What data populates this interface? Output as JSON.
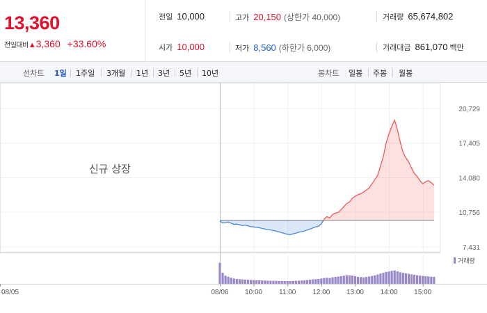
{
  "quote": {
    "price": "13,360",
    "change_label": "전일대비",
    "change_arrow": "▲",
    "change_value": "3,360",
    "change_pct": "+33.60%",
    "prev_close_label": "전일",
    "prev_close": "10,000",
    "open_label": "시가",
    "open": "10,000",
    "high_label": "고가",
    "high": "20,150",
    "upper_limit": "(상한가 40,000)",
    "low_label": "저가",
    "low": "8,560",
    "lower_limit": "(하한가 6,000)",
    "volume_label": "거래량",
    "volume": "65,674,802",
    "amount_label": "거래대금",
    "amount": "861,070",
    "amount_unit": "백만"
  },
  "periods": {
    "line_label": "선차트",
    "line_items": [
      "1일",
      "1주일",
      "3개월",
      "1년",
      "3년",
      "5년",
      "10년"
    ],
    "active": "1일",
    "candle_label": "봉차트",
    "candle_items": [
      "일봉",
      "주봉",
      "월봉"
    ]
  },
  "notice": "신규 상장",
  "colors": {
    "up": "#e0102a",
    "down": "#1e5bd6",
    "up_line": "#f05858",
    "down_line": "#4a86d0",
    "volume": "#9b88c9"
  },
  "chart_data": {
    "type": "line",
    "base_price": 10000,
    "ylim": [
      7431,
      20729
    ],
    "yticks": [
      "20,729",
      "17,405",
      "14,080",
      "10,756",
      "7,431"
    ],
    "ytick_values": [
      20729,
      17405,
      14080,
      10756,
      7431
    ],
    "xticks": [
      "08/05",
      "08/06",
      "10:00",
      "11:00",
      "12:00",
      "13:00",
      "14:00",
      "15:00"
    ],
    "volume_legend": "거래량",
    "series": [
      {
        "x": [
          "09:00",
          "09:05",
          "09:10",
          "09:15",
          "09:20",
          "09:25",
          "09:30",
          "09:35",
          "09:40",
          "09:45",
          "09:50",
          "09:55",
          "10:00",
          "10:05",
          "10:10",
          "10:15",
          "10:20",
          "10:25",
          "10:30",
          "10:35",
          "10:40",
          "10:45",
          "10:50",
          "10:55",
          "11:00",
          "11:05",
          "11:10",
          "11:15",
          "11:20",
          "11:25",
          "11:30",
          "11:35",
          "11:40",
          "11:45",
          "11:50",
          "11:55",
          "12:00",
          "12:05",
          "12:10",
          "12:15",
          "12:20",
          "12:25",
          "12:30",
          "12:35",
          "12:40",
          "12:45",
          "12:50",
          "12:55",
          "13:00",
          "13:05",
          "13:10",
          "13:15",
          "13:20",
          "13:25",
          "13:30",
          "13:35",
          "13:40",
          "13:45",
          "13:50",
          "13:55",
          "14:00",
          "14:05",
          "14:10",
          "14:15",
          "14:20",
          "14:25",
          "14:30",
          "14:35",
          "14:40",
          "14:45",
          "14:50",
          "14:55",
          "15:00",
          "15:05",
          "15:10",
          "15:15",
          "15:20"
        ],
        "values": [
          9900,
          9750,
          9760,
          9820,
          9700,
          9600,
          9620,
          9560,
          9480,
          9520,
          9450,
          9380,
          9350,
          9300,
          9280,
          9200,
          9150,
          9100,
          9060,
          9000,
          8950,
          8880,
          8800,
          8720,
          8640,
          8600,
          8690,
          8750,
          8850,
          8900,
          8960,
          9060,
          9150,
          9250,
          9350,
          9420,
          9650,
          10100,
          10350,
          10200,
          10550,
          10680,
          10750,
          11000,
          11300,
          11600,
          11750,
          12100,
          12300,
          12450,
          12550,
          12700,
          12900,
          13100,
          13500,
          13900,
          14300,
          15200,
          16100,
          17400,
          18300,
          19000,
          19600,
          18700,
          17500,
          16500,
          16000,
          15600,
          15000,
          14500,
          14200,
          13800,
          13500,
          13700,
          13800,
          13600,
          13360
        ]
      }
    ],
    "volume": [
      180,
      95,
      70,
      60,
      52,
      45,
      42,
      40,
      38,
      36,
      34,
      33,
      32,
      30,
      30,
      29,
      28,
      27,
      27,
      26,
      26,
      25,
      25,
      24,
      24,
      24,
      25,
      26,
      27,
      28,
      30,
      32,
      35,
      38,
      40,
      42,
      46,
      50,
      52,
      50,
      56,
      60,
      63,
      66,
      70,
      74,
      72,
      70,
      66,
      60,
      58,
      55,
      60,
      63,
      68,
      72,
      80,
      88,
      95,
      102,
      106,
      112,
      115,
      108,
      100,
      95,
      90,
      86,
      82,
      78,
      74,
      70,
      68,
      66,
      64,
      62,
      60
    ]
  }
}
